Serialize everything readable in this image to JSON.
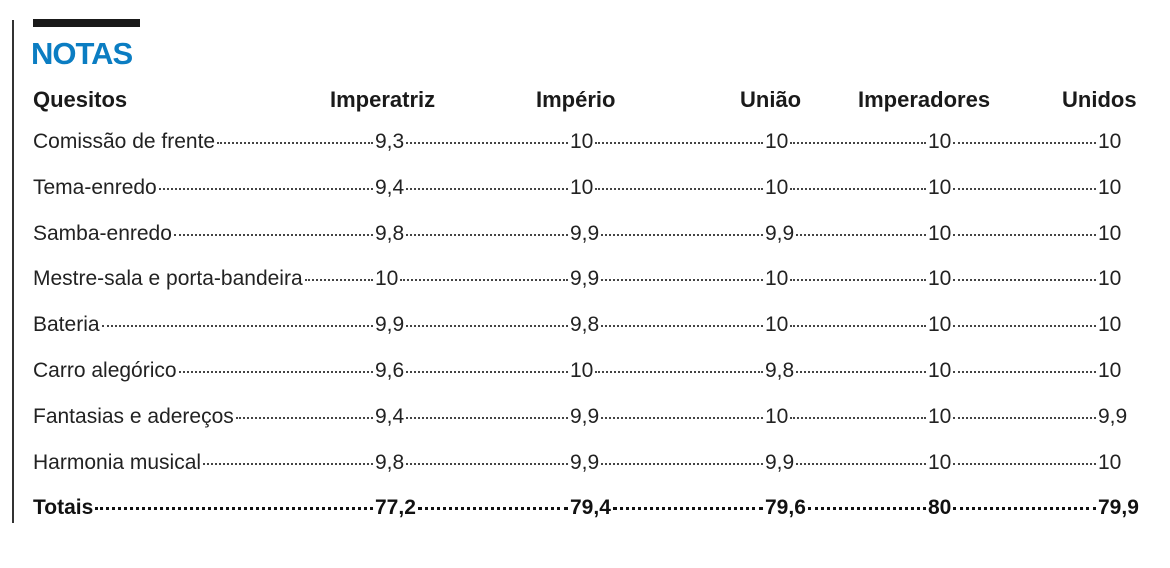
{
  "title": "NOTAS",
  "table": {
    "header": [
      "Quesitos",
      "Imperatriz",
      "Império",
      "União",
      "Imperadores",
      "Unidos"
    ],
    "rows": [
      [
        "Comissão de frente",
        "9,3",
        "10",
        "10",
        "10",
        "10"
      ],
      [
        "Tema-enredo",
        "9,4",
        "10",
        "10",
        "10",
        "10"
      ],
      [
        "Samba-enredo",
        "9,8",
        "9,9",
        "9,9",
        "10",
        "10"
      ],
      [
        "Mestre-sala e porta-bandeira",
        "10",
        "9,9",
        "10",
        "10",
        "10"
      ],
      [
        "Bateria",
        "9,9",
        "9,8",
        "10",
        "10",
        "10"
      ],
      [
        "Carro alegórico",
        "9,6",
        "10",
        "9,8",
        "10",
        "10"
      ],
      [
        "Fantasias e adereços",
        "9,4",
        "9,9",
        "10",
        "10",
        "9,9"
      ],
      [
        "Harmonia musical",
        "9,8",
        "9,9",
        "9,9",
        "10",
        "10"
      ]
    ],
    "totals": [
      "Totais",
      "77,2",
      "79,4",
      "79,6",
      "80",
      "79,9"
    ]
  }
}
